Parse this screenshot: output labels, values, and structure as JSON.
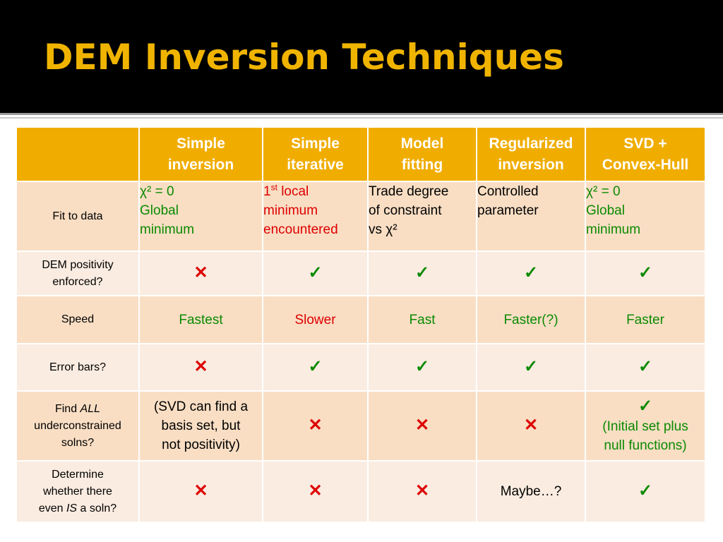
{
  "title": "DEM Inversion Techniques",
  "columns": [
    "Simple inversion",
    "Simple iterative",
    "Model fitting",
    "Regularized inversion",
    "SVD + Convex-Hull"
  ],
  "column_lines": [
    [
      "Simple",
      "inversion"
    ],
    [
      "Simple",
      "iterative"
    ],
    [
      "Model",
      "fitting"
    ],
    [
      "Regularized",
      "inversion"
    ],
    [
      "SVD +",
      "Convex-Hull"
    ]
  ],
  "rows": {
    "fit": {
      "label": "Fit to data",
      "simple_inversion": [
        "χ² = 0",
        "Global",
        "minimum"
      ],
      "simple_iterative": {
        "sup_num": "1",
        "sup": "st",
        "lines": [
          " local",
          "minimum",
          "encountered"
        ]
      },
      "model_fitting": [
        "Trade degree",
        "of constraint",
        "vs χ²"
      ],
      "regularized": [
        "Controlled",
        "parameter"
      ],
      "svd": [
        "χ² = 0",
        "Global",
        "minimum"
      ]
    },
    "positivity": {
      "label_lines": [
        "DEM positivity",
        "enforced?"
      ],
      "marks": [
        "✕",
        "✓",
        "✓",
        "✓",
        "✓"
      ]
    },
    "speed": {
      "label": "Speed",
      "values": [
        "Fastest",
        "Slower",
        "Fast",
        "Faster(?)",
        "Faster"
      ]
    },
    "error_bars": {
      "label": "Error bars?",
      "marks": [
        "✕",
        "✓",
        "✓",
        "✓",
        "✓"
      ]
    },
    "find_all": {
      "label_prefix": "Find ",
      "label_italic": "ALL",
      "label_lines": [
        "underconstrained",
        "solns?"
      ],
      "simple_inversion": [
        "(SVD can find a",
        "basis set, but",
        "not positivity)"
      ],
      "marks": [
        "✕",
        "✕",
        "✕"
      ],
      "svd_mark": "✓",
      "svd_lines": [
        "(Initial set plus",
        "null functions)"
      ]
    },
    "determine": {
      "label_lines": [
        "Determine",
        "whether there"
      ],
      "label_prefix": "even ",
      "label_italic": "IS",
      "label_suffix": " a soln?",
      "marks": [
        "✕",
        "✕",
        "✕"
      ],
      "regularized": "Maybe…?",
      "svd_mark": "✓"
    }
  },
  "colors": {
    "header_bg": "#f0ad00",
    "row_a": "#f9dec4",
    "row_b": "#faece1",
    "title": "#f0b400",
    "green": "#0a8a00",
    "red": "#dd0000"
  }
}
